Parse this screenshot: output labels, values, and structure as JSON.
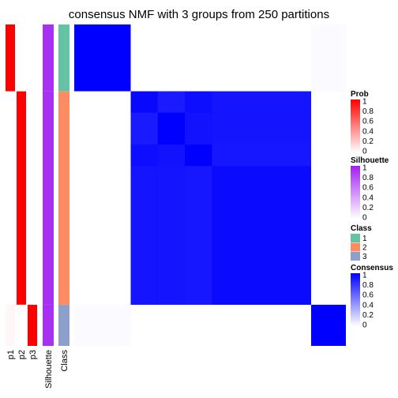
{
  "chart_data": {
    "type": "heatmap",
    "title": "consensus NMF with 3 groups from 250 partitions",
    "column_labels": [
      "p1",
      "p2",
      "p3",
      "Silhouette",
      "Class"
    ],
    "group_sizes": [
      26,
      83,
      16
    ],
    "annotation_values": {
      "p1": [
        1,
        0,
        0.03
      ],
      "p2": [
        0,
        1,
        0
      ],
      "p3": [
        0,
        0,
        1
      ],
      "silhouette": [
        0.93,
        0.93,
        0.93
      ],
      "class": [
        1,
        2,
        3
      ]
    },
    "consensus_blocks": [
      [
        1,
        0,
        0.02
      ],
      [
        0,
        0.94,
        0
      ],
      [
        0.02,
        0,
        1
      ]
    ],
    "legends": [
      {
        "title": "Prob",
        "ticks": [
          "1",
          "0.8",
          "0.6",
          "0.4",
          "0.2",
          "0"
        ],
        "low": "#ffffff",
        "high": "#ff0000"
      },
      {
        "title": "Silhouette",
        "ticks": [
          "1",
          "0.8",
          "0.6",
          "0.4",
          "0.2",
          "0"
        ],
        "low": "#ffffff",
        "high": "#a020f0"
      },
      {
        "title": "Class",
        "items": [
          {
            "label": "1",
            "color": "#66c2a5"
          },
          {
            "label": "2",
            "color": "#fc8d62"
          },
          {
            "label": "3",
            "color": "#8da0cb"
          }
        ]
      },
      {
        "title": "Consensus",
        "ticks": [
          "1",
          "0.8",
          "0.6",
          "0.4",
          "0.2",
          "0"
        ],
        "low": "#ffffff",
        "high": "#0000ff"
      }
    ]
  },
  "colors": {
    "prob": "#ff0000",
    "silhouette": "#a020f0",
    "consensus": "#0000ff"
  }
}
